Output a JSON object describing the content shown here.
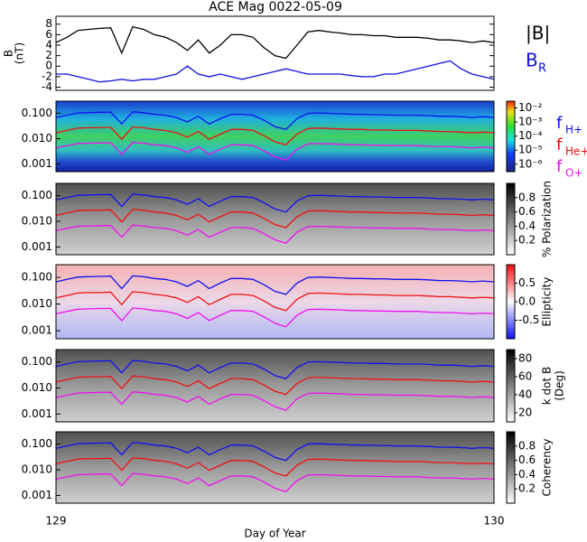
{
  "chart_data": [
    {
      "type": "line",
      "title": "ACE Mag 0022-05-09",
      "y_label": [
        "B",
        "(nT)"
      ],
      "x": [
        129,
        129.025,
        129.05,
        129.075,
        129.1,
        129.125,
        129.15,
        129.175,
        129.2,
        129.225,
        129.25,
        129.275,
        129.3,
        129.325,
        129.35,
        129.375,
        129.4,
        129.425,
        129.45,
        129.475,
        129.5,
        129.525,
        129.55,
        129.575,
        129.6,
        129.625,
        129.65,
        129.675,
        129.7,
        129.725,
        129.75,
        129.775,
        129.8,
        129.825,
        129.85,
        129.875,
        129.9,
        129.925,
        129.95,
        129.975,
        130
      ],
      "xlim": [
        129,
        130
      ],
      "ylim": [
        -4.6,
        9.5
      ],
      "yticks": [
        -4,
        -2,
        0,
        2,
        4,
        6,
        8
      ],
      "series": [
        {
          "name": "|B|",
          "color": "#000000",
          "values": [
            4.5,
            5.5,
            6.8,
            7.0,
            7.2,
            7.3,
            2.5,
            7.5,
            7.0,
            6.0,
            5.5,
            4.5,
            3.0,
            5.0,
            2.5,
            4.0,
            6.0,
            6.0,
            5.5,
            3.5,
            2.0,
            1.5,
            4.0,
            6.5,
            6.8,
            6.5,
            6.3,
            6.0,
            6.0,
            5.8,
            5.8,
            5.5,
            5.5,
            5.5,
            5.3,
            5.0,
            5.0,
            4.8,
            4.5,
            4.8,
            4.5
          ]
        },
        {
          "name": "B",
          "subscript": "R",
          "color": "#1010e0",
          "values": [
            -1.5,
            -1.5,
            -2,
            -2.5,
            -3,
            -2.8,
            -2.5,
            -2.8,
            -2.5,
            -2.5,
            -2,
            -1.5,
            0,
            -1.5,
            -2,
            -1.5,
            -2,
            -2.5,
            -2,
            -1.5,
            -1,
            -0.5,
            -1,
            -1.5,
            -1.5,
            -1.5,
            -1.5,
            -1.8,
            -2,
            -2,
            -1.5,
            -1.5,
            -1,
            -0.5,
            0,
            0.5,
            1,
            -0.5,
            -1.5,
            -2,
            -2.5
          ]
        }
      ]
    },
    {
      "type": "spectrogram",
      "log_y": true,
      "x": [
        129,
        129.025,
        129.05,
        129.075,
        129.1,
        129.125,
        129.15,
        129.175,
        129.2,
        129.225,
        129.25,
        129.275,
        129.3,
        129.325,
        129.35,
        129.375,
        129.4,
        129.425,
        129.45,
        129.475,
        129.5,
        129.525,
        129.55,
        129.575,
        129.6,
        129.625,
        129.65,
        129.675,
        129.7,
        129.725,
        129.75,
        129.775,
        129.8,
        129.825,
        129.85,
        129.875,
        129.9,
        129.925,
        129.95,
        129.975,
        130
      ],
      "xlim": [
        129,
        130
      ],
      "ylim": [
        0.0005,
        0.3
      ],
      "yticks": [
        {
          "value": 0.001,
          "label": "0.001"
        },
        {
          "value": 0.01,
          "label": "0.010"
        },
        {
          "value": 0.1,
          "label": "0.100"
        }
      ],
      "colorbar": {
        "log": true,
        "lim": [
          3e-07,
          0.03
        ],
        "ticks": [
          {
            "value": 0.01,
            "label": "10⁻²"
          },
          {
            "value": 0.001,
            "label": "10⁻³"
          },
          {
            "value": 0.0001,
            "label": "10⁻⁴"
          },
          {
            "value": 1e-05,
            "label": "10⁻⁵"
          },
          {
            "value": 1e-06,
            "label": "10⁻⁶"
          }
        ]
      },
      "series": [
        {
          "name": "f",
          "subscript": "H+",
          "color": "#1010f0",
          "values": [
            0.068,
            0.084,
            0.103,
            0.106,
            0.109,
            0.111,
            0.038,
            0.114,
            0.106,
            0.091,
            0.084,
            0.068,
            0.046,
            0.076,
            0.038,
            0.061,
            0.091,
            0.091,
            0.084,
            0.053,
            0.03,
            0.023,
            0.061,
            0.099,
            0.103,
            0.099,
            0.096,
            0.091,
            0.091,
            0.088,
            0.088,
            0.084,
            0.084,
            0.084,
            0.081,
            0.076,
            0.076,
            0.073,
            0.068,
            0.073,
            0.068
          ]
        },
        {
          "name": "f",
          "subscript": "He+",
          "color": "#f01010",
          "values": [
            0.017,
            0.021,
            0.026,
            0.027,
            0.027,
            0.028,
            0.0095,
            0.029,
            0.027,
            0.023,
            0.021,
            0.017,
            0.0115,
            0.019,
            0.0095,
            0.015,
            0.023,
            0.023,
            0.021,
            0.013,
            0.0075,
            0.0057,
            0.015,
            0.025,
            0.026,
            0.025,
            0.024,
            0.023,
            0.023,
            0.022,
            0.022,
            0.021,
            0.021,
            0.021,
            0.02,
            0.019,
            0.019,
            0.018,
            0.017,
            0.018,
            0.017
          ]
        },
        {
          "name": "f",
          "subscript": "O+",
          "color": "#f010f0",
          "values": [
            0.0043,
            0.0053,
            0.0064,
            0.0066,
            0.0068,
            0.0069,
            0.0024,
            0.0071,
            0.0066,
            0.0057,
            0.0053,
            0.0043,
            0.0029,
            0.0048,
            0.0024,
            0.0038,
            0.0057,
            0.0057,
            0.0053,
            0.0033,
            0.0019,
            0.0014,
            0.0038,
            0.0062,
            0.0064,
            0.0062,
            0.006,
            0.0057,
            0.0057,
            0.0055,
            0.0055,
            0.0053,
            0.0053,
            0.0053,
            0.005,
            0.0048,
            0.0048,
            0.0046,
            0.0043,
            0.0046,
            0.0043
          ]
        }
      ]
    },
    {
      "type": "spectrogram",
      "log_y": true,
      "ylim": [
        0.0005,
        0.3
      ],
      "yticks": [
        {
          "value": 0.001,
          "label": "0.001"
        },
        {
          "value": 0.01,
          "label": "0.010"
        },
        {
          "value": 0.1,
          "label": "0.100"
        }
      ],
      "colorbar": {
        "label": [
          "% Polarization"
        ],
        "lim": [
          0,
          1
        ],
        "ticks": [
          0.2,
          0.4,
          0.6,
          0.8
        ]
      }
    },
    {
      "type": "spectrogram",
      "log_y": true,
      "ylim": [
        0.0005,
        0.3
      ],
      "yticks": [
        {
          "value": 0.001,
          "label": "0.001"
        },
        {
          "value": 0.01,
          "label": "0.010"
        },
        {
          "value": 0.1,
          "label": "0.100"
        }
      ],
      "colorbar": {
        "label": [
          "Ellipticity"
        ],
        "lim": [
          -1,
          1
        ],
        "ticks": [
          -0.5,
          {
            "value": 0,
            "label": "0.0"
          },
          0.5
        ]
      }
    },
    {
      "type": "spectrogram",
      "log_y": true,
      "ylim": [
        0.0005,
        0.3
      ],
      "yticks": [
        {
          "value": 0.001,
          "label": "0.001"
        },
        {
          "value": 0.01,
          "label": "0.010"
        },
        {
          "value": 0.1,
          "label": "0.100"
        }
      ],
      "colorbar": {
        "label": [
          "k dot B",
          "(Deg)"
        ],
        "lim": [
          10,
          90
        ],
        "ticks": [
          20,
          40,
          60,
          80
        ]
      }
    },
    {
      "type": "spectrogram",
      "log_y": true,
      "ylim": [
        0.0005,
        0.3
      ],
      "yticks": [
        {
          "value": 0.001,
          "label": "0.001"
        },
        {
          "value": 0.01,
          "label": "0.010"
        },
        {
          "value": 0.1,
          "label": "0.100"
        }
      ],
      "colorbar": {
        "label": [
          "Coherency"
        ],
        "lim": [
          0,
          1
        ],
        "ticks": [
          0.2,
          0.4,
          0.6,
          0.8
        ]
      },
      "xlim": [
        129,
        130
      ],
      "xticks": [
        129,
        130
      ],
      "x_label": "Day of Year"
    }
  ]
}
